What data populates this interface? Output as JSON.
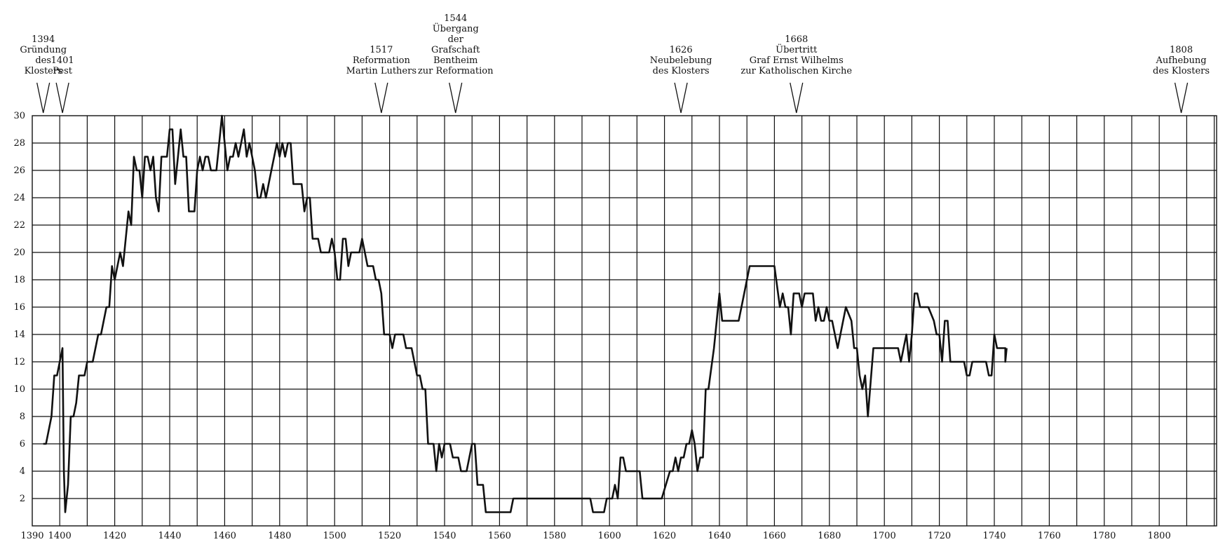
{
  "chart_data": {
    "type": "line",
    "title": "",
    "xlabel": "",
    "ylabel": "",
    "xlim": [
      1390,
      1810
    ],
    "ylim": [
      0,
      30
    ],
    "grid": true,
    "x_ticks": [
      {
        "value": 1390,
        "label": "1390"
      },
      {
        "value": 1400,
        "label": "1400"
      },
      {
        "value": 1420,
        "label": "1420"
      },
      {
        "value": 1440,
        "label": "1440"
      },
      {
        "value": 1460,
        "label": "1460"
      },
      {
        "value": 1480,
        "label": "1480"
      },
      {
        "value": 1500,
        "label": "1500"
      },
      {
        "value": 1520,
        "label": "1520"
      },
      {
        "value": 1540,
        "label": "1540"
      },
      {
        "value": 1560,
        "label": "1560"
      },
      {
        "value": 1580,
        "label": "1580"
      },
      {
        "value": 1600,
        "label": "1600"
      },
      {
        "value": 1620,
        "label": "1620"
      },
      {
        "value": 1640,
        "label": "1640"
      },
      {
        "value": 1660,
        "label": "1660"
      },
      {
        "value": 1680,
        "label": "1680"
      },
      {
        "value": 1700,
        "label": "1700"
      },
      {
        "value": 1720,
        "label": "1720"
      },
      {
        "value": 1740,
        "label": "1740"
      },
      {
        "value": 1760,
        "label": "1760"
      },
      {
        "value": 1780,
        "label": "1780"
      },
      {
        "value": 1800,
        "label": "1800"
      }
    ],
    "y_ticks": [
      {
        "value": 2,
        "label": "2"
      },
      {
        "value": 4,
        "label": "4"
      },
      {
        "value": 6,
        "label": "6"
      },
      {
        "value": 8,
        "label": "8"
      },
      {
        "value": 10,
        "label": "10"
      },
      {
        "value": 12,
        "label": "12"
      },
      {
        "value": 14,
        "label": "14"
      },
      {
        "value": 16,
        "label": "16"
      },
      {
        "value": 18,
        "label": "18"
      },
      {
        "value": 20,
        "label": "20"
      },
      {
        "value": 22,
        "label": "22"
      },
      {
        "value": 24,
        "label": "24"
      },
      {
        "value": 26,
        "label": "26"
      },
      {
        "value": 28,
        "label": "28"
      },
      {
        "value": 30,
        "label": "30"
      }
    ],
    "annotations": [
      {
        "year": 1394,
        "lines": [
          "1394",
          "Gründung",
          "des",
          "Klosters"
        ]
      },
      {
        "year": 1401,
        "lines": [
          "1401",
          "Pest"
        ]
      },
      {
        "year": 1517,
        "lines": [
          "1517",
          "Reformation",
          "Martin Luthers"
        ]
      },
      {
        "year": 1544,
        "lines": [
          "1544",
          "Übergang",
          "der",
          "Grafschaft",
          "Bentheim",
          "zur Reformation"
        ]
      },
      {
        "year": 1626,
        "lines": [
          "1626",
          "Neubelebung",
          "des Klosters"
        ]
      },
      {
        "year": 1668,
        "lines": [
          "1668",
          "Übertritt",
          "Graf Ernst Wilhelms",
          "zur Katholischen Kirche"
        ]
      },
      {
        "year": 1808,
        "lines": [
          "1808",
          "Aufhebung",
          "des Klosters"
        ]
      }
    ],
    "series": [
      {
        "points": [
          [
            1394,
            6
          ],
          [
            1395,
            6
          ],
          [
            1397,
            8
          ],
          [
            1398,
            11
          ],
          [
            1399,
            11
          ],
          [
            1400,
            12
          ],
          [
            1401,
            13
          ],
          [
            1401.5,
            4
          ],
          [
            1402,
            1
          ],
          [
            1403,
            3
          ],
          [
            1404,
            8
          ],
          [
            1405,
            8
          ],
          [
            1406,
            9
          ],
          [
            1407,
            11
          ],
          [
            1409,
            11
          ],
          [
            1410,
            12
          ],
          [
            1412,
            12
          ],
          [
            1414,
            14
          ],
          [
            1415,
            14
          ],
          [
            1417,
            16
          ],
          [
            1418,
            16
          ],
          [
            1419,
            19
          ],
          [
            1420,
            18
          ],
          [
            1421,
            19
          ],
          [
            1422,
            20
          ],
          [
            1423,
            19
          ],
          [
            1424,
            21
          ],
          [
            1425,
            23
          ],
          [
            1426,
            22
          ],
          [
            1427,
            27
          ],
          [
            1428,
            26
          ],
          [
            1429,
            26
          ],
          [
            1430,
            24
          ],
          [
            1431,
            27
          ],
          [
            1432,
            27
          ],
          [
            1433,
            26
          ],
          [
            1434,
            27
          ],
          [
            1435,
            24
          ],
          [
            1436,
            23
          ],
          [
            1437,
            27
          ],
          [
            1439,
            27
          ],
          [
            1440,
            29
          ],
          [
            1441,
            29
          ],
          [
            1442,
            25
          ],
          [
            1443,
            27
          ],
          [
            1444,
            29
          ],
          [
            1445,
            27
          ],
          [
            1446,
            27
          ],
          [
            1447,
            23
          ],
          [
            1449,
            23
          ],
          [
            1450,
            26
          ],
          [
            1451,
            27
          ],
          [
            1452,
            26
          ],
          [
            1453,
            27
          ],
          [
            1454,
            27
          ],
          [
            1455,
            26
          ],
          [
            1457,
            26
          ],
          [
            1458,
            28
          ],
          [
            1459,
            30
          ],
          [
            1460,
            28
          ],
          [
            1461,
            26
          ],
          [
            1462,
            27
          ],
          [
            1463,
            27
          ],
          [
            1464,
            28
          ],
          [
            1465,
            27
          ],
          [
            1466,
            28
          ],
          [
            1467,
            29
          ],
          [
            1468,
            27
          ],
          [
            1469,
            28
          ],
          [
            1470,
            27
          ],
          [
            1471,
            26
          ],
          [
            1472,
            24
          ],
          [
            1473,
            24
          ],
          [
            1474,
            25
          ],
          [
            1475,
            24
          ],
          [
            1476,
            25
          ],
          [
            1477,
            26
          ],
          [
            1478,
            27
          ],
          [
            1479,
            28
          ],
          [
            1480,
            27
          ],
          [
            1481,
            28
          ],
          [
            1482,
            27
          ],
          [
            1483,
            28
          ],
          [
            1484,
            28
          ],
          [
            1485,
            25
          ],
          [
            1488,
            25
          ],
          [
            1489,
            23
          ],
          [
            1490,
            24
          ],
          [
            1491,
            24
          ],
          [
            1492,
            21
          ],
          [
            1494,
            21
          ],
          [
            1495,
            20
          ],
          [
            1498,
            20
          ],
          [
            1499,
            21
          ],
          [
            1500,
            20
          ],
          [
            1501,
            18
          ],
          [
            1502,
            18
          ],
          [
            1503,
            21
          ],
          [
            1504,
            21
          ],
          [
            1505,
            19
          ],
          [
            1506,
            20
          ],
          [
            1509,
            20
          ],
          [
            1510,
            21
          ],
          [
            1511,
            20
          ],
          [
            1512,
            19
          ],
          [
            1514,
            19
          ],
          [
            1515,
            18
          ],
          [
            1516,
            18
          ],
          [
            1517,
            17
          ],
          [
            1518,
            14
          ],
          [
            1520,
            14
          ],
          [
            1521,
            13
          ],
          [
            1522,
            14
          ],
          [
            1525,
            14
          ],
          [
            1526,
            13
          ],
          [
            1528,
            13
          ],
          [
            1529,
            12
          ],
          [
            1530,
            11
          ],
          [
            1531,
            11
          ],
          [
            1532,
            10
          ],
          [
            1533,
            10
          ],
          [
            1534,
            6
          ],
          [
            1536,
            6
          ],
          [
            1537,
            4
          ],
          [
            1538,
            6
          ],
          [
            1539,
            5
          ],
          [
            1540,
            6
          ],
          [
            1542,
            6
          ],
          [
            1543,
            5
          ],
          [
            1545,
            5
          ],
          [
            1546,
            4
          ],
          [
            1548,
            4
          ],
          [
            1549,
            5
          ],
          [
            1550,
            6
          ],
          [
            1551,
            6
          ],
          [
            1552,
            3
          ],
          [
            1554,
            3
          ],
          [
            1555,
            1
          ],
          [
            1564,
            1
          ],
          [
            1565,
            2
          ],
          [
            1593,
            2
          ],
          [
            1594,
            1
          ],
          [
            1598,
            1
          ],
          [
            1599,
            2
          ],
          [
            1601,
            2
          ],
          [
            1602,
            3
          ],
          [
            1603,
            2
          ],
          [
            1604,
            5
          ],
          [
            1605,
            5
          ],
          [
            1606,
            4
          ],
          [
            1611,
            4
          ],
          [
            1612,
            2
          ],
          [
            1619,
            2
          ],
          [
            1622,
            4
          ],
          [
            1623,
            4
          ],
          [
            1624,
            5
          ],
          [
            1625,
            4
          ],
          [
            1626,
            5
          ],
          [
            1627,
            5
          ],
          [
            1628,
            6
          ],
          [
            1629,
            6
          ],
          [
            1630,
            7
          ],
          [
            1631,
            6
          ],
          [
            1632,
            4
          ],
          [
            1633,
            5
          ],
          [
            1634,
            5
          ],
          [
            1635,
            10
          ],
          [
            1636,
            10
          ],
          [
            1638,
            13
          ],
          [
            1640,
            17
          ],
          [
            1641,
            15
          ],
          [
            1647,
            15
          ],
          [
            1648,
            16
          ],
          [
            1651,
            19
          ],
          [
            1660,
            19
          ],
          [
            1662,
            16
          ],
          [
            1663,
            17
          ],
          [
            1664,
            16
          ],
          [
            1665,
            16
          ],
          [
            1666,
            14
          ],
          [
            1667,
            17
          ],
          [
            1669,
            17
          ],
          [
            1670,
            16
          ],
          [
            1671,
            17
          ],
          [
            1674,
            17
          ],
          [
            1675,
            15
          ],
          [
            1676,
            16
          ],
          [
            1677,
            15
          ],
          [
            1678,
            15
          ],
          [
            1679,
            16
          ],
          [
            1680,
            15
          ],
          [
            1681,
            15
          ],
          [
            1683,
            13
          ],
          [
            1684,
            14
          ],
          [
            1686,
            16
          ],
          [
            1688,
            15
          ],
          [
            1689,
            13
          ],
          [
            1690,
            13
          ],
          [
            1691,
            11
          ],
          [
            1692,
            10
          ],
          [
            1693,
            11
          ],
          [
            1694,
            8
          ],
          [
            1696,
            13
          ],
          [
            1705,
            13
          ],
          [
            1706,
            12
          ],
          [
            1707,
            13
          ],
          [
            1708,
            14
          ],
          [
            1709,
            12
          ],
          [
            1710,
            14
          ],
          [
            1711,
            17
          ],
          [
            1712,
            17
          ],
          [
            1713,
            16
          ],
          [
            1716,
            16
          ],
          [
            1718,
            15
          ],
          [
            1719,
            14
          ],
          [
            1720,
            14
          ],
          [
            1721,
            12
          ],
          [
            1722,
            15
          ],
          [
            1723,
            15
          ],
          [
            1724,
            12
          ],
          [
            1729,
            12
          ],
          [
            1730,
            11
          ],
          [
            1731,
            11
          ],
          [
            1732,
            12
          ],
          [
            1737,
            12
          ],
          [
            1738,
            11
          ],
          [
            1739,
            11
          ],
          [
            1740,
            14
          ],
          [
            1741,
            13
          ],
          [
            1744,
            13
          ],
          [
            1744,
            12
          ],
          [
            1744.5,
            13
          ]
        ]
      }
    ]
  }
}
